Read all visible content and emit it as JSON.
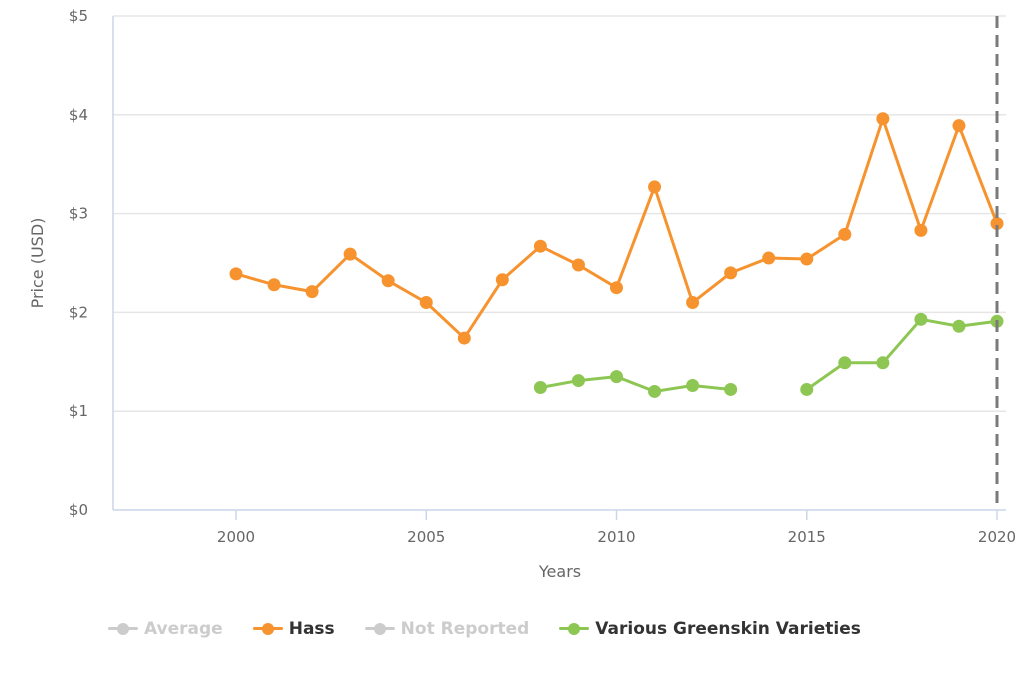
{
  "chart_data": {
    "type": "line",
    "title": "",
    "xlabel": "Years",
    "ylabel": "Price (USD)",
    "xlim": [
      1996.8,
      2020.25
    ],
    "ylim": [
      0,
      5
    ],
    "grid": true,
    "legend_position": "bottom",
    "y_ticks": [
      "$0",
      "$1",
      "$2",
      "$3",
      "$4",
      "$5"
    ],
    "x_ticks": [
      "2000",
      "2005",
      "2010",
      "2015",
      "2020"
    ],
    "plot_line_at_x": 2020,
    "series": [
      {
        "name": "Average",
        "color": "#cccccc",
        "visible": false,
        "x": [],
        "values": []
      },
      {
        "name": "Hass",
        "color": "#f7932f",
        "visible": true,
        "x": [
          2000,
          2001,
          2002,
          2003,
          2004,
          2005,
          2006,
          2007,
          2008,
          2009,
          2010,
          2011,
          2012,
          2013,
          2014,
          2015,
          2016,
          2017,
          2018,
          2019,
          2020
        ],
        "values": [
          2.39,
          2.28,
          2.21,
          2.59,
          2.32,
          2.1,
          1.74,
          2.33,
          2.67,
          2.48,
          2.25,
          3.27,
          2.1,
          2.4,
          2.55,
          2.54,
          2.79,
          3.96,
          2.83,
          3.89,
          2.9
        ]
      },
      {
        "name": "Not Reported",
        "color": "#cccccc",
        "visible": false,
        "x": [],
        "values": []
      },
      {
        "name": "Various Greenskin Varieties",
        "color": "#8dc653",
        "visible": true,
        "x": [
          2008,
          2009,
          2010,
          2011,
          2012,
          2013,
          2014,
          2015,
          2016,
          2017,
          2018,
          2019,
          2020
        ],
        "values": [
          1.24,
          1.31,
          1.35,
          1.2,
          1.26,
          1.22,
          null,
          1.22,
          1.49,
          1.49,
          1.93,
          1.86,
          1.91
        ]
      }
    ]
  }
}
